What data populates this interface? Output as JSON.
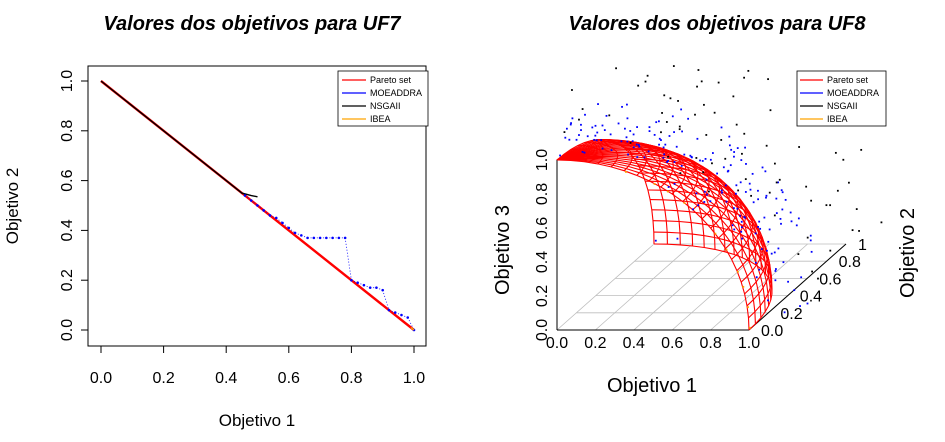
{
  "chart_data": [
    {
      "type": "line",
      "title": "Valores dos objetivos para UF7",
      "xlabel": "Objetivo 1",
      "ylabel": "Objetivo 2",
      "xlim": [
        0,
        1
      ],
      "ylim": [
        0,
        1
      ],
      "xticks": [
        "0.0",
        "0.2",
        "0.4",
        "0.6",
        "0.8",
        "1.0"
      ],
      "yticks": [
        "0.0",
        "0.2",
        "0.4",
        "0.6",
        "0.8",
        "1.0"
      ],
      "legend": {
        "position": "top-right",
        "entries": [
          {
            "label": "Pareto set",
            "color": "#ff0000"
          },
          {
            "label": "MOEADDRA",
            "color": "#0000ff"
          },
          {
            "label": "NSGAII",
            "color": "#000000"
          },
          {
            "label": "IBEA",
            "color": "#ffa500"
          }
        ]
      },
      "series": [
        {
          "name": "Pareto set",
          "color": "#ff0000",
          "x": [
            0,
            1
          ],
          "y": [
            1,
            0
          ]
        },
        {
          "name": "NSGAII",
          "color": "#000000",
          "x": [
            0,
            0.1,
            0.2,
            0.3,
            0.4,
            0.45,
            0.48,
            0.5
          ],
          "y": [
            1,
            0.9,
            0.8,
            0.7,
            0.6,
            0.55,
            0.54,
            0.535
          ]
        },
        {
          "name": "MOEADDRA",
          "color": "#0000ff",
          "x": [
            0.46,
            0.48,
            0.5,
            0.52,
            0.54,
            0.56,
            0.58,
            0.6,
            0.62,
            0.64,
            0.66,
            0.68,
            0.7,
            0.72,
            0.74,
            0.76,
            0.78,
            0.8,
            0.82,
            0.84,
            0.86,
            0.88,
            0.9,
            0.92,
            0.94,
            0.96,
            0.98,
            1.0
          ],
          "y": [
            0.54,
            0.52,
            0.5,
            0.48,
            0.46,
            0.45,
            0.43,
            0.41,
            0.39,
            0.38,
            0.37,
            0.37,
            0.37,
            0.37,
            0.37,
            0.37,
            0.37,
            0.2,
            0.19,
            0.18,
            0.17,
            0.17,
            0.16,
            0.08,
            0.07,
            0.06,
            0.05,
            0.0
          ]
        },
        {
          "name": "IBEA",
          "color": "#ffa500",
          "x": [
            0.99,
            1.0
          ],
          "y": [
            0.01,
            0.0
          ]
        }
      ]
    },
    {
      "type": "scatter",
      "title": "Valores dos objetivos para UF8",
      "xlabel": "Objetivo 1",
      "ylabel": "Objetivo 2",
      "zlabel": "Objetivo 3",
      "xticks": [
        "0.0",
        "0.2",
        "0.4",
        "0.6",
        "0.8",
        "1.0"
      ],
      "yticks": [
        "0.0",
        "0.2",
        "0.4",
        "0.6",
        "0.8",
        "1"
      ],
      "zticks": [
        "0.0",
        "0.2",
        "0.4",
        "0.6",
        "0.8",
        "1.0"
      ],
      "xlim": [
        0,
        1
      ],
      "ylim": [
        0,
        1
      ],
      "zlim": [
        0,
        1
      ],
      "legend": {
        "position": "top-right",
        "entries": [
          {
            "label": "Pareto set",
            "color": "#ff0000"
          },
          {
            "label": "MOEADDRA",
            "color": "#0000ff"
          },
          {
            "label": "NSGAII",
            "color": "#000000"
          },
          {
            "label": "IBEA",
            "color": "#ffa500"
          }
        ]
      },
      "series": [
        {
          "name": "Pareto set",
          "color": "#ff0000",
          "surface": "sphere x^2+y^2+z^2=1 octant"
        },
        {
          "name": "MOEADDRA",
          "color": "#0000ff",
          "points": 180
        },
        {
          "name": "NSGAII",
          "color": "#000000",
          "points": 90
        },
        {
          "name": "IBEA",
          "color": "#ffa500",
          "points": 10
        }
      ]
    }
  ]
}
